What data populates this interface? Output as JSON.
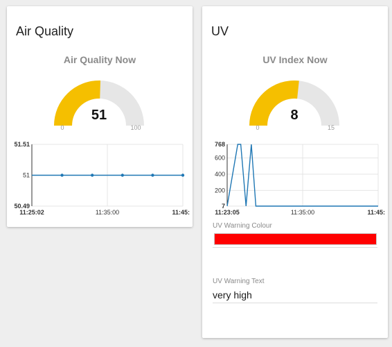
{
  "air_quality": {
    "card_title": "Air Quality",
    "gauge": {
      "title": "Air Quality Now",
      "value": 51,
      "value_label": "51",
      "min": 0,
      "max": 100,
      "min_label": "0",
      "max_label": "100",
      "fill_color": "#f5bf00",
      "track_color": "#e6e6e6"
    }
  },
  "uv": {
    "card_title": "UV",
    "gauge": {
      "title": "UV Index Now",
      "value": 8,
      "value_label": "8",
      "min": 0,
      "max": 15,
      "min_label": "0",
      "max_label": "15",
      "fill_color": "#f5bf00",
      "track_color": "#e6e6e6"
    },
    "warning_colour": {
      "label": "UV Warning Colour",
      "value": "#ff0000"
    },
    "warning_text": {
      "label": "UV Warning Text",
      "value": "very high"
    }
  },
  "chart_data": [
    {
      "type": "line",
      "line_color": "#1f77b4",
      "x_labels": [
        "11:25:02",
        "11:35:00",
        "11:45:"
      ],
      "x": [
        0,
        0.2,
        0.4,
        0.6,
        0.8,
        1.0
      ],
      "y": [
        51,
        51,
        51,
        51,
        51,
        51
      ],
      "markers_at": [
        0.2,
        0.4,
        0.6,
        0.8,
        1.0
      ],
      "y_tick_labels": [
        "51.51",
        "51",
        "50.49"
      ],
      "y_ticks": [
        51.51,
        51,
        50.49
      ],
      "ylim": [
        50.49,
        51.51
      ],
      "grid": true
    },
    {
      "type": "line",
      "line_color": "#1f77b4",
      "x_labels": [
        "11:23:05",
        "11:35:00",
        "11:45:"
      ],
      "x": [
        0,
        0.07,
        0.09,
        0.125,
        0.16,
        0.19,
        0.2,
        1.0
      ],
      "y": [
        7,
        768,
        768,
        7,
        768,
        7,
        7,
        7
      ],
      "y_tick_labels": [
        "768",
        "600",
        "400",
        "200",
        "7"
      ],
      "y_ticks": [
        768,
        600,
        400,
        200,
        7
      ],
      "ylim": [
        7,
        768
      ],
      "grid": true
    }
  ]
}
